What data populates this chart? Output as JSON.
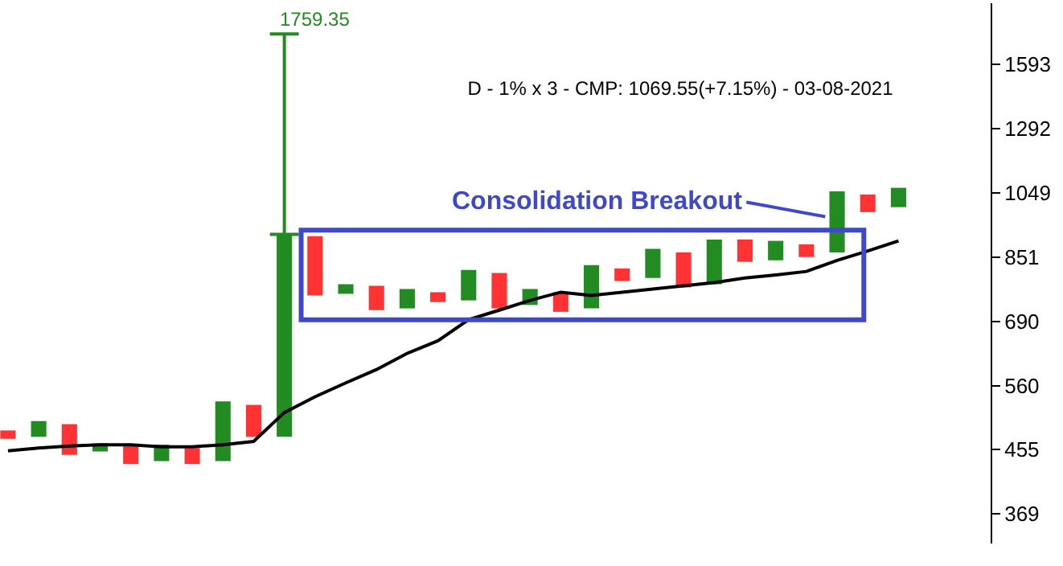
{
  "chart_data": {
    "type": "bar",
    "title": "D - 1% x 3 - CMP: 1069.55(+7.15%) - 03-08-2021",
    "categories": [
      null,
      null,
      null,
      null,
      null,
      null,
      null,
      null,
      null,
      null,
      null,
      null,
      null,
      null,
      null,
      null,
      null,
      null,
      null,
      null,
      null,
      null,
      null,
      null,
      null,
      null,
      null,
      null,
      null,
      null
    ],
    "tick_labels": "y",
    "log": "y",
    "ylim": [
      335,
      1944
    ],
    "yticks": [
      369,
      455,
      560,
      690,
      851,
      1049,
      1292,
      1593
    ],
    "series": [
      {
        "base": [
          471,
          474,
          447,
          452,
          434,
          438,
          434,
          438,
          474,
          474,
          751,
          755,
          716,
          720,
          735,
          739,
          720,
          728,
          712,
          720,
          787,
          795,
          771,
          779,
          838,
          842,
          851,
          864,
          985,
          1001
        ],
        "values": [
          13,
          25,
          47,
          12,
          28,
          24,
          23,
          94,
          52,
          442,
          160,
          24,
          59,
          47,
          24,
          77,
          88,
          39,
          47,
          109,
          33,
          79,
          93,
          122,
          63,
          55,
          36,
          190,
          58,
          65
        ],
        "colors": [
          "#ff3333",
          "#228b22",
          "#ff3333",
          "#228b22",
          "#ff3333",
          "#228b22",
          "#ff3333",
          "#228b22",
          "#ff3333",
          "#228b22",
          "#ff3333",
          "#228b22",
          "#ff3333",
          "#228b22",
          "#ff3333",
          "#228b22",
          "#ff3333",
          "#228b22",
          "#ff3333",
          "#228b22",
          "#ff3333",
          "#228b22",
          "#ff3333",
          "#228b22",
          "#ff3333",
          "#228b22",
          "#ff3333",
          "#228b22",
          "#ff3333",
          "#228b22"
        ],
        "errors": [
          null,
          null,
          null,
          null,
          null,
          null,
          null,
          null,
          null,
          [
            916,
            1759.35
          ],
          null,
          null,
          null,
          null,
          null,
          null,
          null,
          null,
          null,
          null,
          null,
          null,
          null,
          null,
          null,
          null,
          null,
          null,
          null,
          null
        ]
      },
      {
        "type": "line",
        "color": "#000000",
        "marker": "none",
        "line_style": "solid",
        "values": [
          453,
          457,
          460,
          462,
          462,
          459,
          459,
          462,
          467,
          513,
          540,
          565,
          590,
          622,
          648,
          694,
          716,
          739,
          759,
          751,
          759,
          767,
          775,
          783,
          795,
          803,
          812,
          842,
          868,
          897
        ]
      }
    ],
    "annotations": [
      "1759.35",
      "Consolidation Breakout"
    ]
  }
}
